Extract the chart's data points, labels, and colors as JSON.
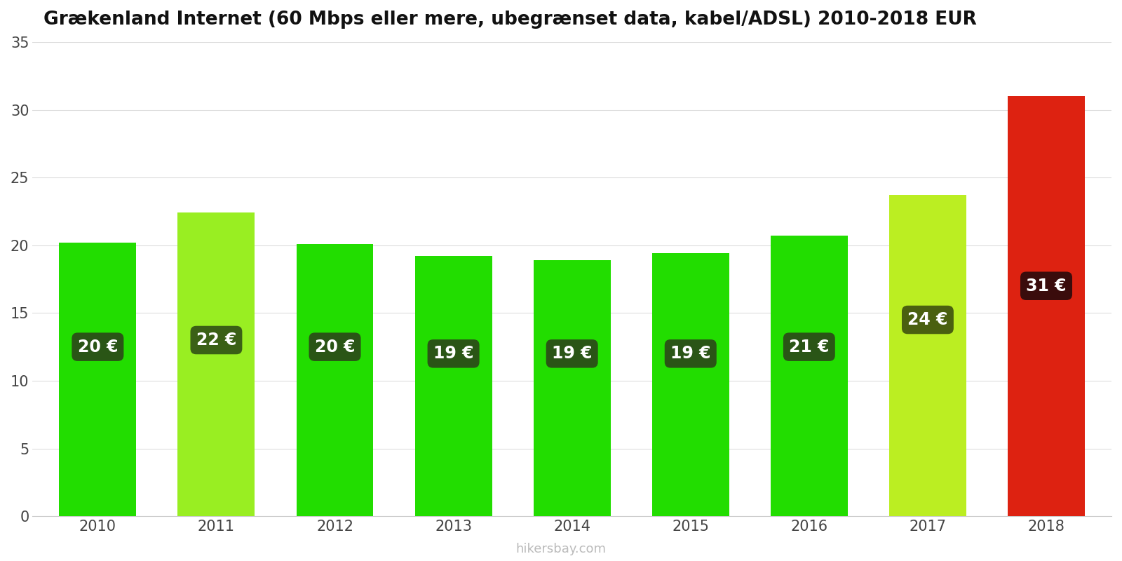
{
  "title": "Grækenland Internet (60 Mbps eller mere, ubegrænset data, kabel/ADSL) 2010-2018 EUR",
  "years": [
    2010,
    2011,
    2012,
    2013,
    2014,
    2015,
    2016,
    2017,
    2018
  ],
  "values": [
    20.2,
    22.4,
    20.1,
    19.2,
    18.9,
    19.4,
    20.7,
    23.7,
    31.0
  ],
  "labels": [
    "20 €",
    "22 €",
    "20 €",
    "19 €",
    "19 €",
    "19 €",
    "21 €",
    "24 €",
    "31 €"
  ],
  "bar_colors": [
    "#22dd00",
    "#99ee22",
    "#22dd00",
    "#22dd00",
    "#22dd00",
    "#22dd00",
    "#22dd00",
    "#bbee22",
    "#dd2211"
  ],
  "label_bg_colors": [
    "#2a5516",
    "#3a6016",
    "#2a5516",
    "#2a5516",
    "#2a5516",
    "#2a5516",
    "#2a5516",
    "#4a6010",
    "#3a0c0c"
  ],
  "label_y_positions": [
    12.5,
    13.0,
    12.5,
    12.0,
    12.0,
    12.0,
    12.5,
    14.5,
    17.0
  ],
  "ylim": [
    0,
    35
  ],
  "yticks": [
    0,
    5,
    10,
    15,
    20,
    25,
    30,
    35
  ],
  "watermark": "hikersbay.com",
  "background_color": "#ffffff",
  "bar_width": 0.65,
  "xlim_left": 2009.45,
  "xlim_right": 2018.55
}
